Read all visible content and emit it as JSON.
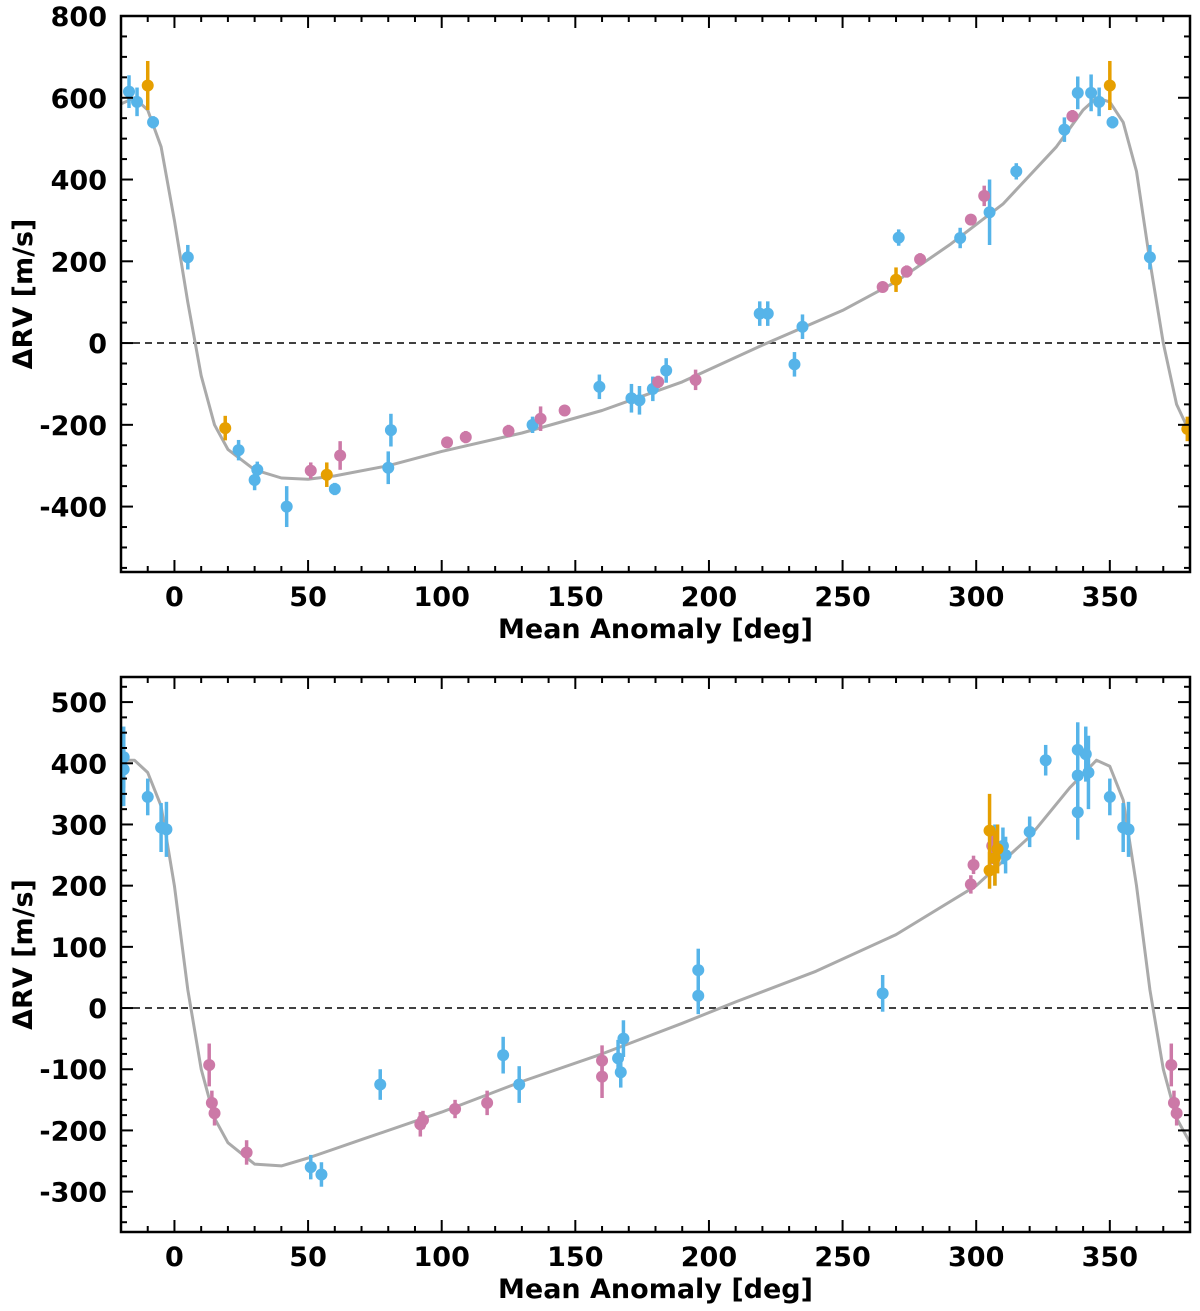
{
  "colors": {
    "blue": "#56b4e9",
    "pink": "#cc79a7",
    "orange": "#e69f00",
    "model": "#aaaaaa"
  },
  "chart_data": [
    {
      "type": "scatter",
      "xlabel": "Mean Anomaly [deg]",
      "ylabel": "ΔRV [m/s]",
      "xlim": [
        -20,
        380
      ],
      "ylim": [
        -560,
        800
      ],
      "xticks": [
        0,
        50,
        100,
        150,
        200,
        250,
        300,
        350
      ],
      "yticks": [
        -400,
        -200,
        0,
        200,
        400,
        600,
        800
      ],
      "zero_line": true,
      "series": [
        {
          "name": "blue",
          "color": "#56b4e9",
          "points": [
            [
              -17,
              615,
              40
            ],
            [
              -14,
              590,
              35
            ],
            [
              -8,
              540,
              15
            ],
            [
              5,
              210,
              30
            ],
            [
              24,
              -262,
              25
            ],
            [
              30,
              -335,
              25
            ],
            [
              31,
              -310,
              20
            ],
            [
              42,
              -400,
              50
            ],
            [
              60,
              -357,
              15
            ],
            [
              80,
              -305,
              40
            ],
            [
              81,
              -213,
              40
            ],
            [
              134,
              -200,
              20
            ],
            [
              159,
              -107,
              30
            ],
            [
              171,
              -135,
              35
            ],
            [
              174,
              -140,
              35
            ],
            [
              179,
              -112,
              30
            ],
            [
              184,
              -67,
              30
            ],
            [
              219,
              72,
              30
            ],
            [
              222,
              72,
              30
            ],
            [
              232,
              -52,
              30
            ],
            [
              235,
              40,
              30
            ],
            [
              271,
              258,
              20
            ],
            [
              294,
              257,
              25
            ],
            [
              305,
              320,
              80
            ],
            [
              315,
              420,
              20
            ],
            [
              333,
              522,
              30
            ],
            [
              338,
              612,
              40
            ],
            [
              343,
              612,
              45
            ],
            [
              346,
              590,
              35
            ],
            [
              351,
              540,
              15
            ],
            [
              365,
              210,
              30
            ]
          ]
        },
        {
          "name": "pink",
          "color": "#cc79a7",
          "points": [
            [
              51,
              -312,
              20
            ],
            [
              62,
              -275,
              35
            ],
            [
              102,
              -243,
              10
            ],
            [
              109,
              -230,
              15
            ],
            [
              125,
              -215,
              15
            ],
            [
              137,
              -185,
              30
            ],
            [
              146,
              -165,
              10
            ],
            [
              181,
              -95,
              15
            ],
            [
              195,
              -90,
              25
            ],
            [
              265,
              137,
              10
            ],
            [
              274,
              175,
              15
            ],
            [
              279,
              205,
              15
            ],
            [
              298,
              302,
              10
            ],
            [
              303,
              360,
              25
            ],
            [
              336,
              555,
              15
            ]
          ]
        },
        {
          "name": "orange",
          "color": "#e69f00",
          "points": [
            [
              -10,
              630,
              60
            ],
            [
              19,
              -208,
              30
            ],
            [
              57,
              -322,
              30
            ],
            [
              270,
              155,
              30
            ],
            [
              350,
              630,
              60
            ],
            [
              379,
              -210,
              30
            ]
          ]
        }
      ],
      "model": [
        [
          -20,
          585
        ],
        [
          -15,
          600
        ],
        [
          -10,
          570
        ],
        [
          -5,
          480
        ],
        [
          0,
          300
        ],
        [
          5,
          100
        ],
        [
          10,
          -80
        ],
        [
          15,
          -200
        ],
        [
          20,
          -260
        ],
        [
          30,
          -310
        ],
        [
          40,
          -330
        ],
        [
          50,
          -333
        ],
        [
          60,
          -325
        ],
        [
          80,
          -300
        ],
        [
          100,
          -265
        ],
        [
          130,
          -220
        ],
        [
          160,
          -165
        ],
        [
          190,
          -95
        ],
        [
          220,
          -5
        ],
        [
          250,
          80
        ],
        [
          270,
          150
        ],
        [
          290,
          240
        ],
        [
          310,
          340
        ],
        [
          330,
          480
        ],
        [
          340,
          570
        ],
        [
          345,
          600
        ],
        [
          350,
          590
        ],
        [
          355,
          540
        ],
        [
          360,
          420
        ],
        [
          365,
          200
        ],
        [
          370,
          0
        ],
        [
          375,
          -150
        ],
        [
          380,
          -220
        ]
      ]
    },
    {
      "type": "scatter",
      "xlabel": "Mean Anomaly [deg]",
      "ylabel": "ΔRV [m/s]",
      "xlim": [
        -20,
        380
      ],
      "ylim": [
        -366,
        541
      ],
      "xticks": [
        0,
        50,
        100,
        150,
        200,
        250,
        300,
        350
      ],
      "yticks": [
        -300,
        -200,
        -100,
        0,
        100,
        200,
        300,
        400,
        500
      ],
      "zero_line": true,
      "series": [
        {
          "name": "blue",
          "color": "#56b4e9",
          "points": [
            [
              -19,
              410,
              50
            ],
            [
              -19,
              390,
              60
            ],
            [
              -10,
              345,
              30
            ],
            [
              -5,
              295,
              40
            ],
            [
              -3,
              292,
              45
            ],
            [
              51,
              -260,
              20
            ],
            [
              55,
              -272,
              20
            ],
            [
              77,
              -125,
              25
            ],
            [
              123,
              -77,
              30
            ],
            [
              129,
              -125,
              30
            ],
            [
              166,
              -82,
              30
            ],
            [
              167,
              -105,
              25
            ],
            [
              168,
              -50,
              30
            ],
            [
              196,
              62,
              35
            ],
            [
              196,
              20,
              30
            ],
            [
              265,
              24,
              30
            ],
            [
              307,
              250,
              50
            ],
            [
              310,
              265,
              30
            ],
            [
              311,
              250,
              30
            ],
            [
              320,
              288,
              25
            ],
            [
              326,
              405,
              25
            ],
            [
              338,
              320,
              45
            ],
            [
              338,
              380,
              55
            ],
            [
              338,
              422,
              45
            ],
            [
              341,
              415,
              45
            ],
            [
              342,
              385,
              60
            ],
            [
              350,
              345,
              30
            ],
            [
              355,
              295,
              40
            ],
            [
              357,
              292,
              45
            ]
          ]
        },
        {
          "name": "pink",
          "color": "#cc79a7",
          "points": [
            [
              13,
              -93,
              35
            ],
            [
              14,
              -155,
              20
            ],
            [
              15,
              -172,
              20
            ],
            [
              27,
              -236,
              20
            ],
            [
              92,
              -190,
              20
            ],
            [
              93,
              -183,
              15
            ],
            [
              105,
              -165,
              15
            ],
            [
              117,
              -155,
              20
            ],
            [
              160,
              -86,
              25
            ],
            [
              160,
              -112,
              35
            ],
            [
              298,
              202,
              15
            ],
            [
              299,
              234,
              15
            ],
            [
              306,
              265,
              30
            ],
            [
              373,
              -93,
              35
            ],
            [
              374,
              -155,
              20
            ],
            [
              375,
              -172,
              20
            ]
          ]
        },
        {
          "name": "orange",
          "color": "#e69f00",
          "points": [
            [
              305,
              290,
              60
            ],
            [
              305,
              225,
              30
            ],
            [
              307,
              245,
              45
            ],
            [
              308,
              260,
              40
            ]
          ]
        }
      ],
      "model": [
        [
          -20,
          405
        ],
        [
          -15,
          405
        ],
        [
          -10,
          385
        ],
        [
          -5,
          330
        ],
        [
          0,
          200
        ],
        [
          5,
          30
        ],
        [
          10,
          -100
        ],
        [
          15,
          -180
        ],
        [
          20,
          -220
        ],
        [
          30,
          -255
        ],
        [
          40,
          -258
        ],
        [
          50,
          -245
        ],
        [
          70,
          -215
        ],
        [
          100,
          -170
        ],
        [
          130,
          -120
        ],
        [
          160,
          -75
        ],
        [
          190,
          -25
        ],
        [
          210,
          10
        ],
        [
          240,
          60
        ],
        [
          270,
          120
        ],
        [
          300,
          200
        ],
        [
          320,
          280
        ],
        [
          335,
          360
        ],
        [
          345,
          405
        ],
        [
          350,
          395
        ],
        [
          355,
          340
        ],
        [
          360,
          200
        ],
        [
          365,
          30
        ],
        [
          370,
          -100
        ],
        [
          375,
          -180
        ],
        [
          380,
          -220
        ]
      ]
    }
  ]
}
